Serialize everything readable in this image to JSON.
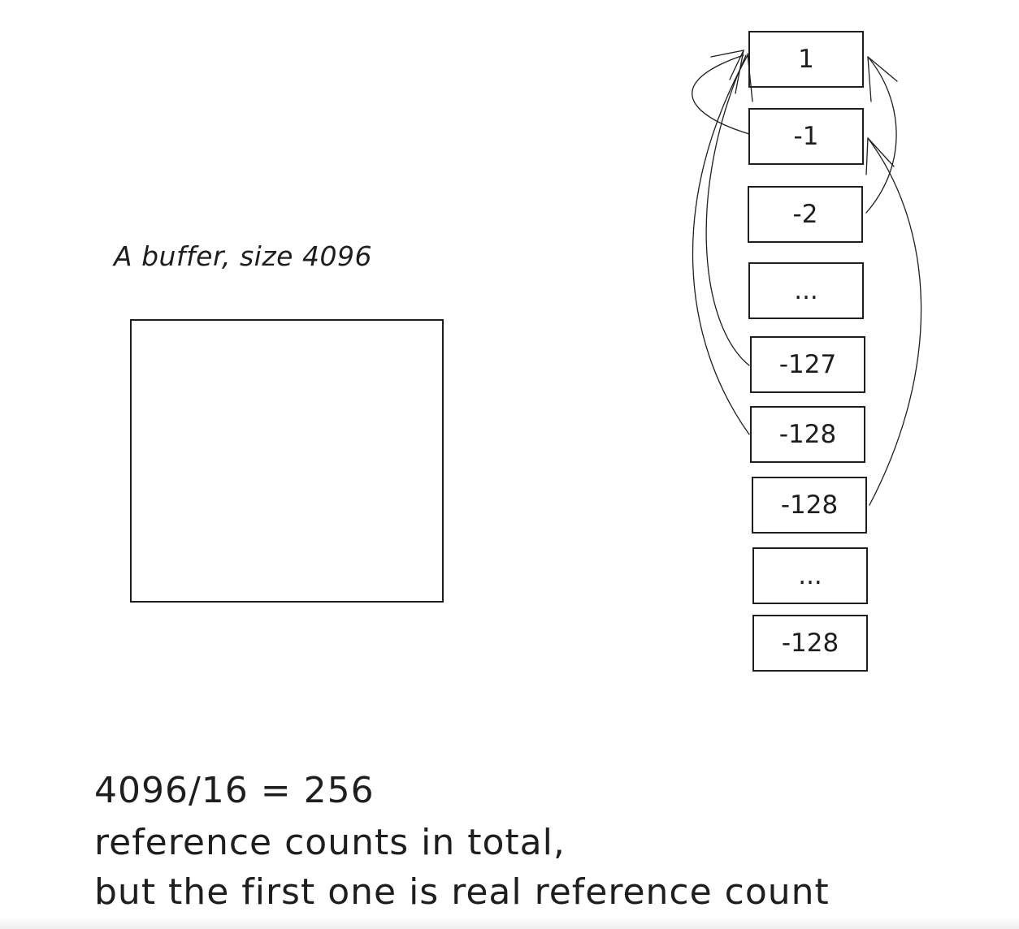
{
  "buffer": {
    "label": "A buffer, size 4096"
  },
  "cells": [
    {
      "label": "1"
    },
    {
      "label": "-1"
    },
    {
      "label": "-2"
    },
    {
      "label": "..."
    },
    {
      "label": "-127"
    },
    {
      "label": "-128"
    },
    {
      "label": "-128"
    },
    {
      "label": "..."
    },
    {
      "label": "-128"
    }
  ],
  "notes": {
    "line1": "4096/16 = 256",
    "line2": "reference counts in total,",
    "line3": "but the first one is real reference count"
  },
  "colors": {
    "stroke": "#1e1e1e",
    "background": "#ffffff"
  }
}
